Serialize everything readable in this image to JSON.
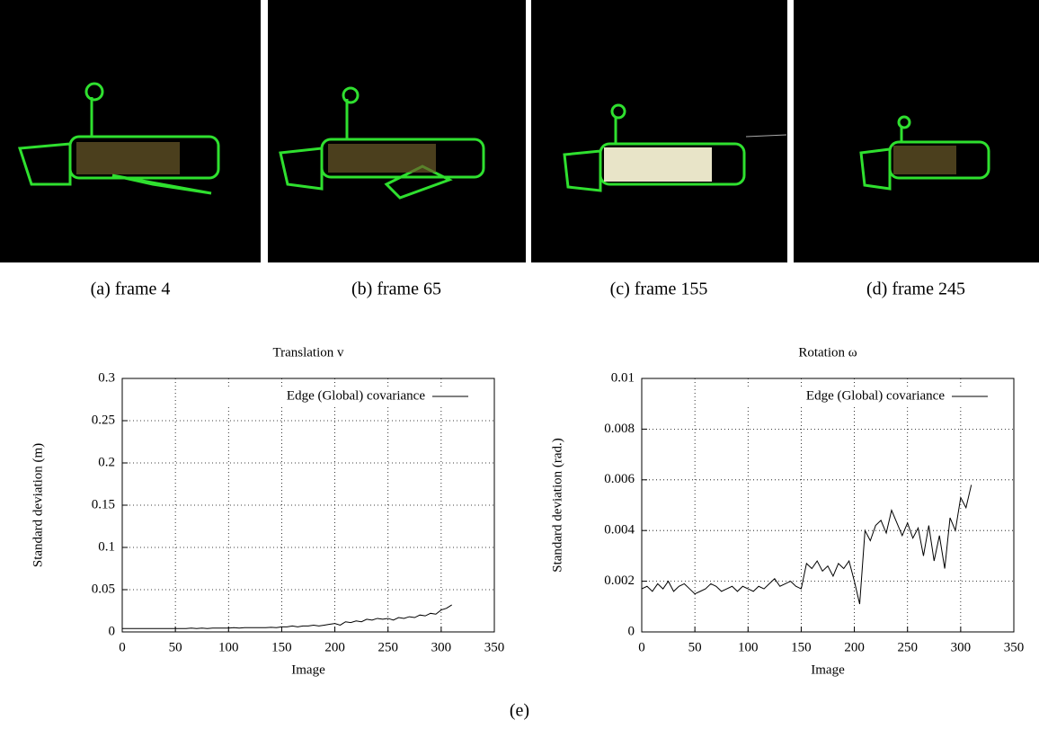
{
  "figures": [
    {
      "caption": "(a)  frame 4"
    },
    {
      "caption": "(b)  frame 65"
    },
    {
      "caption": "(c)  frame 155"
    },
    {
      "caption": "(d)  frame 245"
    }
  ],
  "caption": "(e)",
  "chart_data": [
    {
      "type": "line",
      "title": "Translation v",
      "xlabel": "Image",
      "ylabel": "Standard deviation (m)",
      "xlim": [
        0,
        350
      ],
      "xticks": [
        0,
        50,
        100,
        150,
        200,
        250,
        300,
        350
      ],
      "ylim": [
        0,
        0.3
      ],
      "yticks": [
        0,
        0.05,
        0.1,
        0.15,
        0.2,
        0.25,
        0.3
      ],
      "grid": true,
      "legend": "top-right",
      "x": [
        0,
        5,
        10,
        15,
        20,
        25,
        30,
        35,
        40,
        45,
        50,
        55,
        60,
        65,
        70,
        75,
        80,
        85,
        90,
        95,
        100,
        105,
        110,
        115,
        120,
        125,
        130,
        135,
        140,
        145,
        150,
        155,
        160,
        165,
        170,
        175,
        180,
        185,
        190,
        195,
        200,
        205,
        210,
        215,
        220,
        225,
        230,
        235,
        240,
        245,
        250,
        255,
        260,
        265,
        270,
        275,
        280,
        285,
        290,
        295,
        300,
        305,
        310
      ],
      "series": [
        {
          "name": "Edge (Global) covariance",
          "color": "#000000",
          "values": [
            0.004,
            0.004,
            0.004,
            0.004,
            0.004,
            0.004,
            0.004,
            0.004,
            0.004,
            0.004,
            0.004,
            0.004,
            0.004,
            0.0045,
            0.004,
            0.0045,
            0.004,
            0.0045,
            0.0045,
            0.0045,
            0.0045,
            0.005,
            0.0045,
            0.005,
            0.005,
            0.005,
            0.005,
            0.005,
            0.0055,
            0.005,
            0.006,
            0.006,
            0.007,
            0.006,
            0.007,
            0.007,
            0.008,
            0.007,
            0.008,
            0.009,
            0.01,
            0.008,
            0.012,
            0.011,
            0.013,
            0.012,
            0.015,
            0.014,
            0.016,
            0.015,
            0.016,
            0.014,
            0.017,
            0.016,
            0.018,
            0.017,
            0.02,
            0.019,
            0.022,
            0.021,
            0.026,
            0.028,
            0.032
          ]
        }
      ]
    },
    {
      "type": "line",
      "title": "Rotation ω",
      "xlabel": "Image",
      "ylabel": "Standard deviation (rad.)",
      "xlim": [
        0,
        350
      ],
      "xticks": [
        0,
        50,
        100,
        150,
        200,
        250,
        300,
        350
      ],
      "ylim": [
        0,
        0.01
      ],
      "yticks": [
        0,
        0.002,
        0.004,
        0.006,
        0.008,
        0.01
      ],
      "grid": true,
      "legend": "top-right",
      "x": [
        0,
        5,
        10,
        15,
        20,
        25,
        30,
        35,
        40,
        45,
        50,
        55,
        60,
        65,
        70,
        75,
        80,
        85,
        90,
        95,
        100,
        105,
        110,
        115,
        120,
        125,
        130,
        135,
        140,
        145,
        150,
        155,
        160,
        165,
        170,
        175,
        180,
        185,
        190,
        195,
        200,
        205,
        210,
        215,
        220,
        225,
        230,
        235,
        240,
        245,
        250,
        255,
        260,
        265,
        270,
        275,
        280,
        285,
        290,
        295,
        300,
        305,
        310
      ],
      "series": [
        {
          "name": "Edge (Global) covariance",
          "color": "#000000",
          "values": [
            0.0017,
            0.0018,
            0.0016,
            0.0019,
            0.0017,
            0.002,
            0.0016,
            0.0018,
            0.0019,
            0.0017,
            0.0015,
            0.0016,
            0.0017,
            0.0019,
            0.0018,
            0.0016,
            0.0017,
            0.0018,
            0.0016,
            0.0018,
            0.0017,
            0.0016,
            0.0018,
            0.0017,
            0.0019,
            0.0021,
            0.0018,
            0.0019,
            0.002,
            0.0018,
            0.0017,
            0.0027,
            0.0025,
            0.0028,
            0.0024,
            0.0026,
            0.0022,
            0.0027,
            0.0025,
            0.0028,
            0.002,
            0.0011,
            0.004,
            0.0036,
            0.0042,
            0.0044,
            0.0039,
            0.0048,
            0.0043,
            0.0038,
            0.0043,
            0.0037,
            0.0041,
            0.003,
            0.0042,
            0.0028,
            0.0038,
            0.0025,
            0.0045,
            0.004,
            0.0053,
            0.0049,
            0.0058
          ]
        }
      ]
    }
  ]
}
